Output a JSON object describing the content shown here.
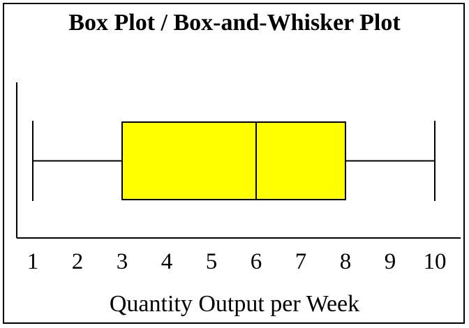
{
  "chart_data": {
    "type": "box",
    "title": "Box Plot / Box-and-Whisker Plot",
    "xlabel": "Quantity Output per Week",
    "ylabel": "",
    "xlim": [
      1,
      10
    ],
    "xticks": [
      1,
      2,
      3,
      4,
      5,
      6,
      7,
      8,
      9,
      10
    ],
    "box": {
      "min": 1,
      "q1": 3,
      "median": 6,
      "q3": 8,
      "max": 10
    },
    "colors": {
      "box_fill": "#ffff00",
      "lines": "#000000"
    },
    "grid": false
  }
}
